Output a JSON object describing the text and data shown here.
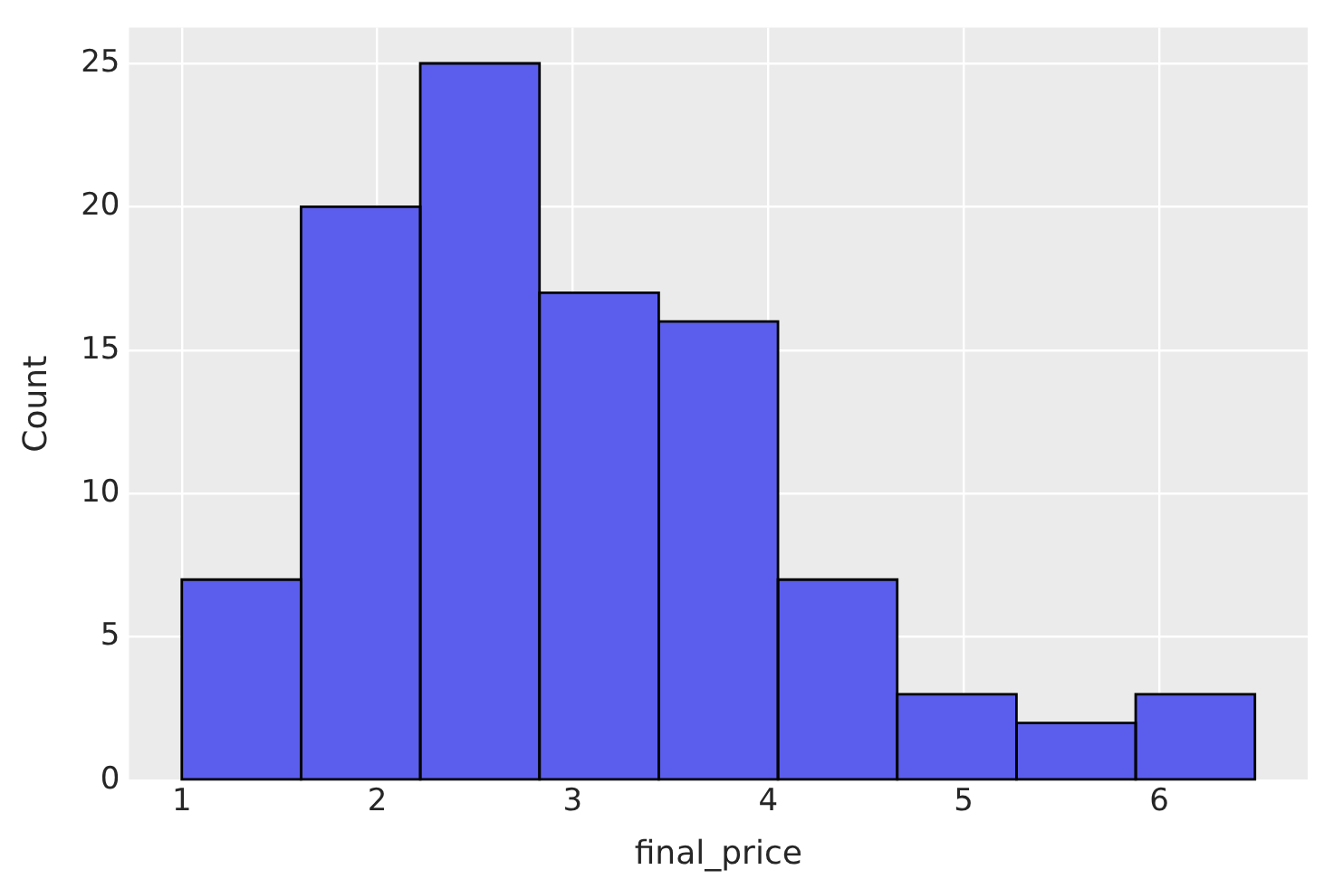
{
  "chart_data": {
    "type": "histogram",
    "xlabel": "final_price",
    "ylabel": "Count",
    "bins": [
      1.0,
      1.61,
      2.22,
      2.83,
      3.44,
      4.05,
      4.66,
      5.27,
      5.88,
      6.49
    ],
    "values": [
      7,
      20,
      25,
      17,
      16,
      7,
      3,
      2,
      3
    ],
    "color": "#5b5eed",
    "xlim": [
      0.73,
      6.76
    ],
    "ylim": [
      0,
      26.25
    ],
    "xticks": [
      1,
      2,
      3,
      4,
      5,
      6
    ],
    "yticks": [
      0,
      5,
      10,
      15,
      20,
      25
    ],
    "grid": true
  }
}
